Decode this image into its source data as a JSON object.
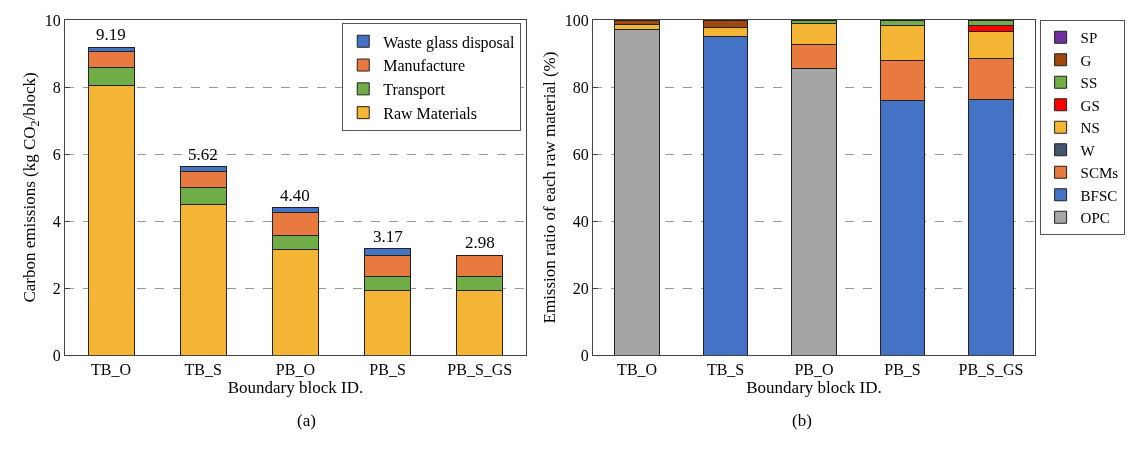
{
  "chart_data": [
    {
      "type": "bar",
      "stacked": true,
      "categories": [
        "TB_O",
        "TB_S",
        "PB_O",
        "PB_S",
        "PB_S_GS"
      ],
      "xlabel": "Boundary block ID.",
      "ylabel": "Carbon emissions (kg CO$_{2}$/block)",
      "ylim": [
        0,
        10
      ],
      "yticks": [
        0,
        2,
        4,
        6,
        8,
        10
      ],
      "grid": "y",
      "legend": "top right",
      "series": [
        {
          "name": "Raw Materials",
          "color": "#f4b534",
          "values": [
            8.04,
            4.48,
            3.16,
            1.92,
            1.92
          ]
        },
        {
          "name": "Transport",
          "color": "#70ad47",
          "values": [
            0.55,
            0.52,
            0.41,
            0.42,
            0.42
          ]
        },
        {
          "name": "Manufacture",
          "color": "#e8793f",
          "values": [
            0.46,
            0.47,
            0.68,
            0.64,
            0.64
          ]
        },
        {
          "name": "Waste glass disposal",
          "color": "#4472c4",
          "values": [
            0.14,
            0.15,
            0.15,
            0.19,
            null
          ]
        }
      ],
      "totals": [
        "9.19",
        "5.62",
        "4.40",
        "3.17",
        "2.98"
      ],
      "annotations": [
        "(a)"
      ]
    },
    {
      "type": "bar",
      "stacked": true,
      "categories": [
        "TB_O",
        "TB_S",
        "PB_O",
        "PB_S",
        "PB_S_GS"
      ],
      "xlabel": "Boundary block ID.",
      "ylabel": "Emission ratio of each raw material (%)",
      "ylim": [
        0,
        100
      ],
      "yticks": [
        0,
        20,
        40,
        60,
        80,
        100
      ],
      "grid": "y",
      "legend": "right",
      "series": [
        {
          "name": "OPC",
          "color": "#a5a5a5",
          "values": [
            97.2,
            null,
            85.5,
            null,
            null
          ]
        },
        {
          "name": "BFSC",
          "color": "#4472c4",
          "values": [
            null,
            95.0,
            null,
            76.0,
            76.4
          ]
        },
        {
          "name": "SCMs",
          "color": "#e8793f",
          "values": [
            null,
            null,
            7.2,
            11.8,
            12.2
          ]
        },
        {
          "name": "W",
          "color": "#44546a",
          "values": [
            null,
            null,
            null,
            null,
            null
          ]
        },
        {
          "name": "NS",
          "color": "#f4b534",
          "values": [
            1.5,
            2.8,
            6.3,
            10.6,
            8.1
          ]
        },
        {
          "name": "GS",
          "color": "#ff0000",
          "values": [
            null,
            null,
            null,
            null,
            1.7
          ]
        },
        {
          "name": "SS",
          "color": "#70ad47",
          "values": [
            null,
            null,
            1.0,
            1.6,
            1.6
          ]
        },
        {
          "name": "G",
          "color": "#9e480e",
          "values": [
            1.3,
            2.2,
            null,
            null,
            null
          ]
        },
        {
          "name": "SP",
          "color": "#7030a0",
          "values": [
            null,
            null,
            null,
            null,
            null
          ]
        }
      ],
      "annotations": [
        "(b)"
      ]
    }
  ]
}
